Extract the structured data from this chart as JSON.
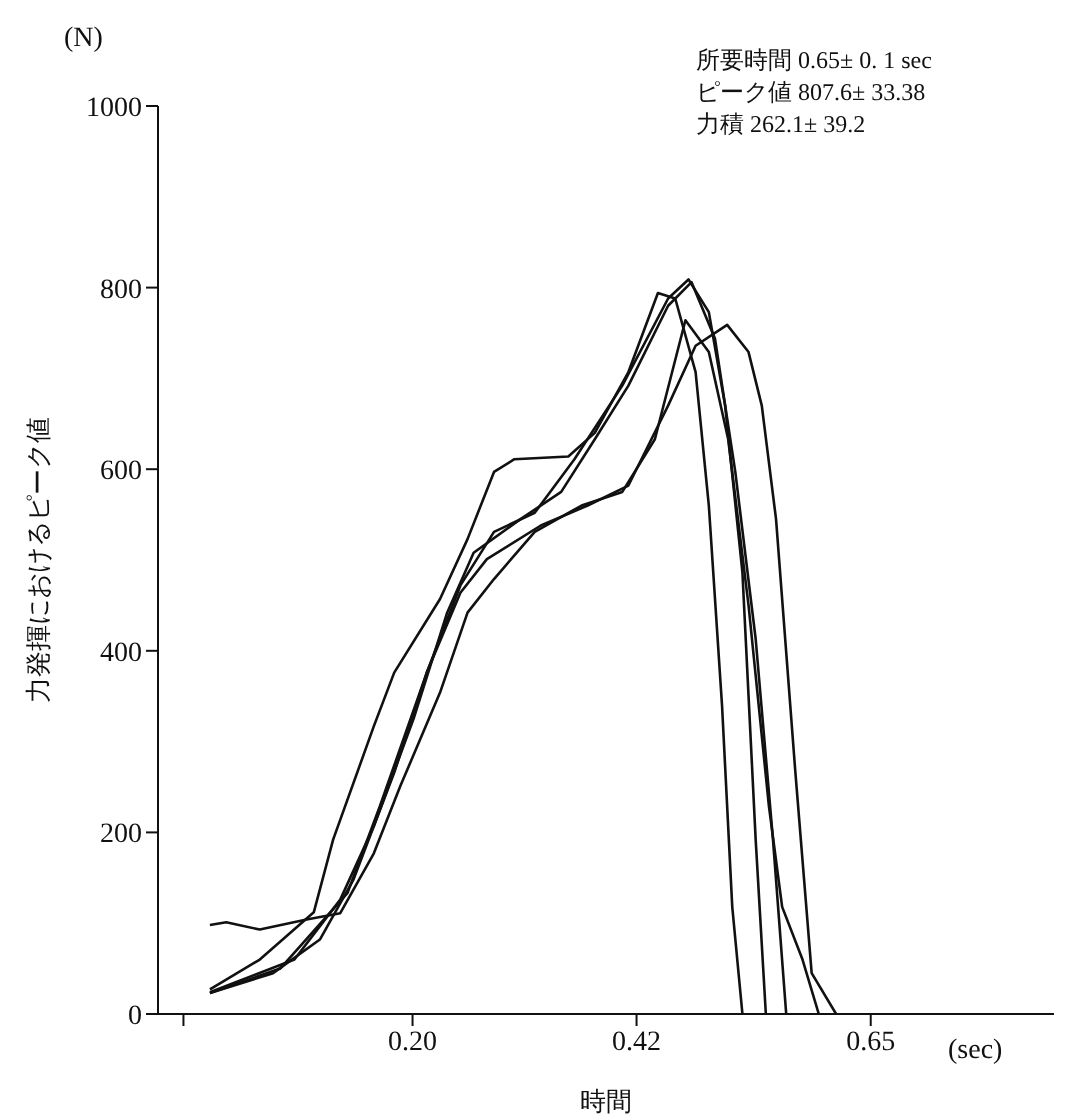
{
  "chart_data": {
    "type": "line",
    "xlabel": "時間",
    "ylabel": "力発揮におけるピーク値",
    "annotations": [
      "(N)",
      "(sec)",
      "所要時間 0.65± 0. 1 sec",
      "ピーク値 807.6± 33.38",
      "力積 262.1± 39.2"
    ],
    "xlim": [
      -0.05,
      0.83
    ],
    "xticks": [
      {
        "value": -0.025,
        "label": null
      },
      {
        "value": 0.2,
        "label": "0.20"
      },
      0.42,
      0.65
    ],
    "ylim": [
      0,
      1000
    ],
    "yticks": [
      0,
      200,
      400,
      600,
      800,
      1000
    ],
    "grid": false,
    "legend": false,
    "marker": "none",
    "line_style": "solid",
    "series": [
      {
        "color": "#111111",
        "x": [
          0.001,
          0.05,
          0.103,
          0.122,
          0.162,
          0.182,
          0.227,
          0.254,
          0.28,
          0.3,
          0.353,
          0.379,
          0.412,
          0.441,
          0.458,
          0.478,
          0.491,
          0.504,
          0.514,
          0.524
        ],
        "values": [
          27,
          60,
          112,
          192,
          317,
          376,
          457,
          523,
          597,
          611,
          614,
          640,
          707,
          794,
          788,
          707,
          560,
          339,
          118,
          0
        ]
      },
      {
        "color": "#111111",
        "x": [
          0.001,
          0.07,
          0.136,
          0.168,
          0.214,
          0.247,
          0.28,
          0.32,
          0.359,
          0.406,
          0.451,
          0.471,
          0.491,
          0.507,
          0.524,
          0.537,
          0.547
        ],
        "values": [
          23,
          50,
          133,
          229,
          376,
          472,
          531,
          552,
          611,
          692,
          788,
          809,
          773,
          670,
          486,
          192,
          0
        ]
      },
      {
        "color": "#111111",
        "x": [
          0.001,
          0.084,
          0.129,
          0.162,
          0.201,
          0.234,
          0.26,
          0.306,
          0.346,
          0.379,
          0.412,
          0.451,
          0.474,
          0.497,
          0.517,
          0.537,
          0.554,
          0.567
        ],
        "values": [
          24,
          60,
          126,
          207,
          325,
          442,
          508,
          545,
          575,
          633,
          692,
          780,
          806,
          744,
          597,
          413,
          192,
          0
        ]
      },
      {
        "color": "#111111",
        "x": [
          0.001,
          0.017,
          0.05,
          0.096,
          0.129,
          0.162,
          0.188,
          0.227,
          0.254,
          0.28,
          0.32,
          0.366,
          0.406,
          0.438,
          0.468,
          0.491,
          0.51,
          0.53,
          0.55,
          0.563,
          0.583,
          0.599
        ],
        "values": [
          98,
          101,
          93,
          104,
          111,
          177,
          251,
          354,
          442,
          479,
          531,
          560,
          575,
          633,
          764,
          729,
          633,
          450,
          229,
          118,
          60,
          0
        ]
      },
      {
        "color": "#111111",
        "x": [
          0.001,
          0.063,
          0.109,
          0.142,
          0.182,
          0.214,
          0.247,
          0.273,
          0.326,
          0.372,
          0.412,
          0.451,
          0.478,
          0.509,
          0.53,
          0.543,
          0.557,
          0.576,
          0.592,
          0.616
        ],
        "values": [
          23,
          45,
          82,
          148,
          266,
          376,
          464,
          501,
          538,
          560,
          582,
          670,
          736,
          759,
          729,
          670,
          545,
          266,
          45,
          0
        ]
      }
    ]
  }
}
